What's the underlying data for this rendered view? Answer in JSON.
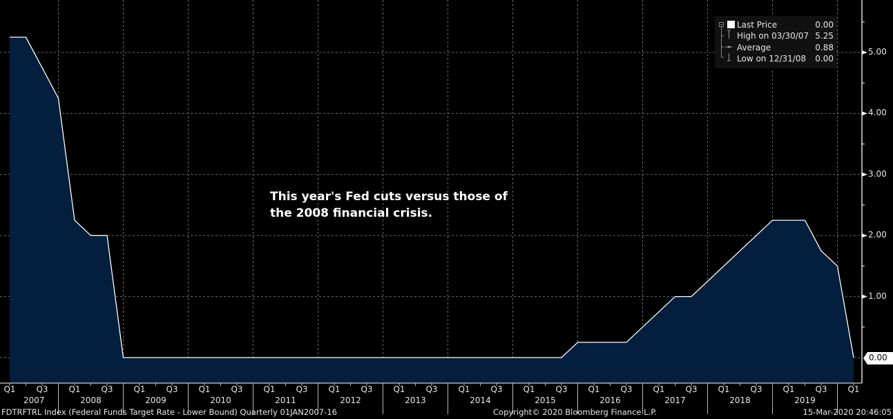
{
  "chart_data": {
    "type": "area",
    "title": "",
    "security": "FDTRFTRL Index (Federal Funds Target Rate - Lower Bound)",
    "frequency": "Quarterly",
    "range": "01JAN2007-16",
    "annotation": [
      "This year's Fed cuts versus those of",
      "the 2008 financial crisis."
    ],
    "xlabel": "",
    "ylabel": "",
    "ylim": [
      -0.35,
      5.9
    ],
    "yticks": [
      0,
      1,
      2,
      3,
      4,
      5
    ],
    "ytick_labels": [
      "0.00",
      "1.00",
      "2.00",
      "3.00",
      "4.00",
      "5.00"
    ],
    "grid": true,
    "x": [
      "2007 Q1",
      "2007 Q2",
      "2007 Q3",
      "2007 Q4",
      "2008 Q1",
      "2008 Q2",
      "2008 Q3",
      "2008 Q4",
      "2009 Q1",
      "2009 Q2",
      "2009 Q3",
      "2009 Q4",
      "2010 Q1",
      "2010 Q2",
      "2010 Q3",
      "2010 Q4",
      "2011 Q1",
      "2011 Q2",
      "2011 Q3",
      "2011 Q4",
      "2012 Q1",
      "2012 Q2",
      "2012 Q3",
      "2012 Q4",
      "2013 Q1",
      "2013 Q2",
      "2013 Q3",
      "2013 Q4",
      "2014 Q1",
      "2014 Q2",
      "2014 Q3",
      "2014 Q4",
      "2015 Q1",
      "2015 Q2",
      "2015 Q3",
      "2015 Q4",
      "2016 Q1",
      "2016 Q2",
      "2016 Q3",
      "2016 Q4",
      "2017 Q1",
      "2017 Q2",
      "2017 Q3",
      "2017 Q4",
      "2018 Q1",
      "2018 Q2",
      "2018 Q3",
      "2018 Q4",
      "2019 Q1",
      "2019 Q2",
      "2019 Q3",
      "2019 Q4",
      "2020 Q1"
    ],
    "series": [
      {
        "name": "Last Price",
        "values": [
          5.25,
          5.25,
          4.75,
          4.25,
          2.25,
          2.0,
          2.0,
          0.0,
          0,
          0,
          0,
          0,
          0,
          0,
          0,
          0,
          0,
          0,
          0,
          0,
          0,
          0,
          0,
          0,
          0,
          0,
          0,
          0,
          0,
          0,
          0,
          0,
          0,
          0,
          0,
          0.25,
          0.25,
          0.25,
          0.25,
          0.5,
          0.75,
          1.0,
          1.0,
          1.25,
          1.5,
          1.75,
          2.0,
          2.25,
          2.25,
          2.25,
          1.75,
          1.5,
          0.0
        ]
      }
    ],
    "x_tick_quarters": [
      "Q1",
      "Q3"
    ],
    "x_years": [
      "2007",
      "2008",
      "2009",
      "2010",
      "2011",
      "2012",
      "2013",
      "2014",
      "2015",
      "2016",
      "2017",
      "2018",
      "2019"
    ],
    "x_last_label": "Q1",
    "legend": {
      "position": "top-right",
      "entries": [
        {
          "label": "Last Price",
          "value": "0.00"
        },
        {
          "label": "High on 03/30/07",
          "value": "5.25"
        },
        {
          "label": "Average",
          "value": "0.88"
        },
        {
          "label": "Low on 12/31/08",
          "value": "0.00"
        }
      ]
    },
    "last_value_tag": "0.00",
    "colors": {
      "fill": "#041f3d",
      "line": "#ffffff",
      "grid": "#6b6b6b",
      "background": "#000000"
    }
  },
  "footer": {
    "left": "FDTRFTRL Index (Federal Funds Target Rate - Lower Bound)  Quarterly 01JAN2007-16",
    "center": "Copyright© 2020 Bloomberg Finance L.P.",
    "right": "15-Mar-2020 20:46:05"
  }
}
